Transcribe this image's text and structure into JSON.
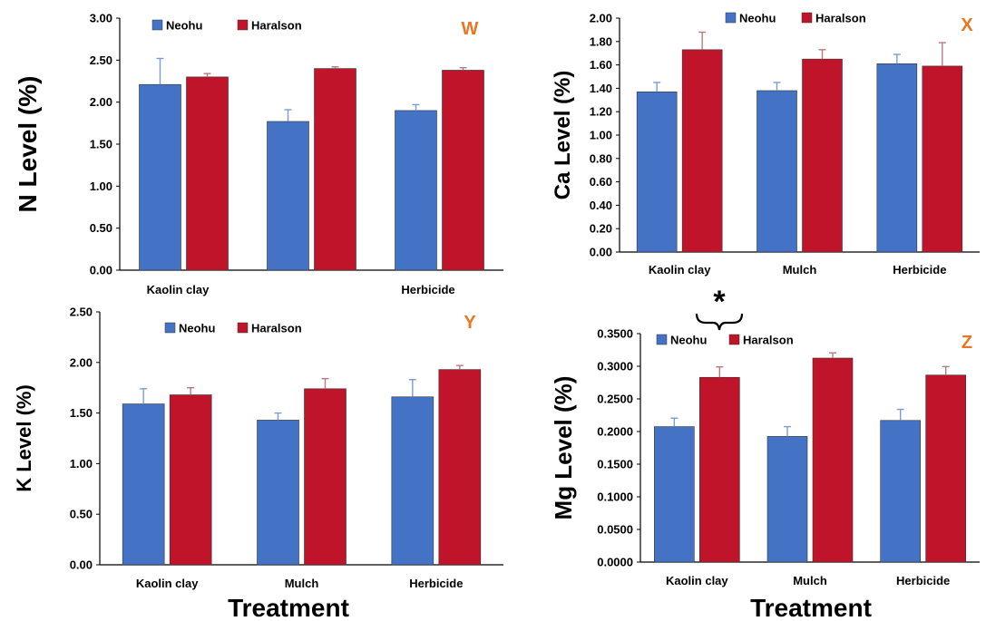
{
  "colors": {
    "neohu": "#4472C4",
    "haralson": "#C0142A",
    "panel_letter": "#E87722",
    "axis": "#000000"
  },
  "legend": [
    "Neohu",
    "Haralson"
  ],
  "xlabel": "Treatment",
  "chart_data": [
    {
      "panel": "W",
      "type": "bar",
      "ylabel": "N Level (%)",
      "categories": [
        "Kaolin clay",
        "",
        "Herbicide"
      ],
      "ylim": [
        0,
        3.0
      ],
      "yticks": [
        "0.00",
        "0.50",
        "1.00",
        "1.50",
        "2.00",
        "2.50",
        "3.00"
      ],
      "series": [
        {
          "name": "Neohu",
          "values": [
            2.21,
            1.77,
            1.9
          ],
          "errors": [
            0.31,
            0.14,
            0.07
          ]
        },
        {
          "name": "Haralson",
          "values": [
            2.3,
            2.4,
            2.38
          ],
          "errors": [
            0.04,
            0.02,
            0.03
          ]
        }
      ],
      "grid": false,
      "legend_position": "top"
    },
    {
      "panel": "X",
      "type": "bar",
      "ylabel": "Ca Level (%)",
      "categories": [
        "Kaolin clay",
        "Mulch",
        "Herbicide"
      ],
      "ylim": [
        0,
        2.0
      ],
      "yticks": [
        "0.00",
        "0.20",
        "0.40",
        "0.60",
        "0.80",
        "1.00",
        "1.20",
        "1.40",
        "1.60",
        "1.80",
        "2.00"
      ],
      "series": [
        {
          "name": "Neohu",
          "values": [
            1.37,
            1.38,
            1.61
          ],
          "errors": [
            0.08,
            0.07,
            0.08
          ]
        },
        {
          "name": "Haralson",
          "values": [
            1.73,
            1.65,
            1.59
          ],
          "errors": [
            0.15,
            0.08,
            0.2
          ]
        }
      ],
      "grid": false,
      "legend_position": "top"
    },
    {
      "panel": "Y",
      "type": "bar",
      "ylabel": "K Level (%)",
      "categories": [
        "Kaolin clay",
        "Mulch",
        "Herbicide"
      ],
      "ylim": [
        0,
        2.5
      ],
      "yticks": [
        "0.00",
        "0.50",
        "1.00",
        "1.50",
        "2.00",
        "2.50"
      ],
      "series": [
        {
          "name": "Neohu",
          "values": [
            1.59,
            1.43,
            1.66
          ],
          "errors": [
            0.15,
            0.07,
            0.17
          ]
        },
        {
          "name": "Haralson",
          "values": [
            1.68,
            1.74,
            1.93
          ],
          "errors": [
            0.07,
            0.1,
            0.04
          ]
        }
      ],
      "grid": false,
      "legend_position": "top"
    },
    {
      "panel": "Z",
      "type": "bar",
      "ylabel": "Mg Level (%)",
      "categories": [
        "Kaolin clay",
        "Mulch",
        "Herbicide"
      ],
      "ylim": [
        0,
        0.35
      ],
      "yticks": [
        "0.0000",
        "0.0500",
        "0.1000",
        "0.1500",
        "0.2000",
        "0.2500",
        "0.3000",
        "0.3500"
      ],
      "series": [
        {
          "name": "Neohu",
          "values": [
            0.2075,
            0.1925,
            0.217
          ],
          "errors": [
            0.013,
            0.015,
            0.017
          ]
        },
        {
          "name": "Haralson",
          "values": [
            0.283,
            0.3125,
            0.2865
          ],
          "errors": [
            0.016,
            0.008,
            0.013
          ]
        }
      ],
      "annotation": "*",
      "grid": false,
      "legend_position": "top"
    }
  ]
}
